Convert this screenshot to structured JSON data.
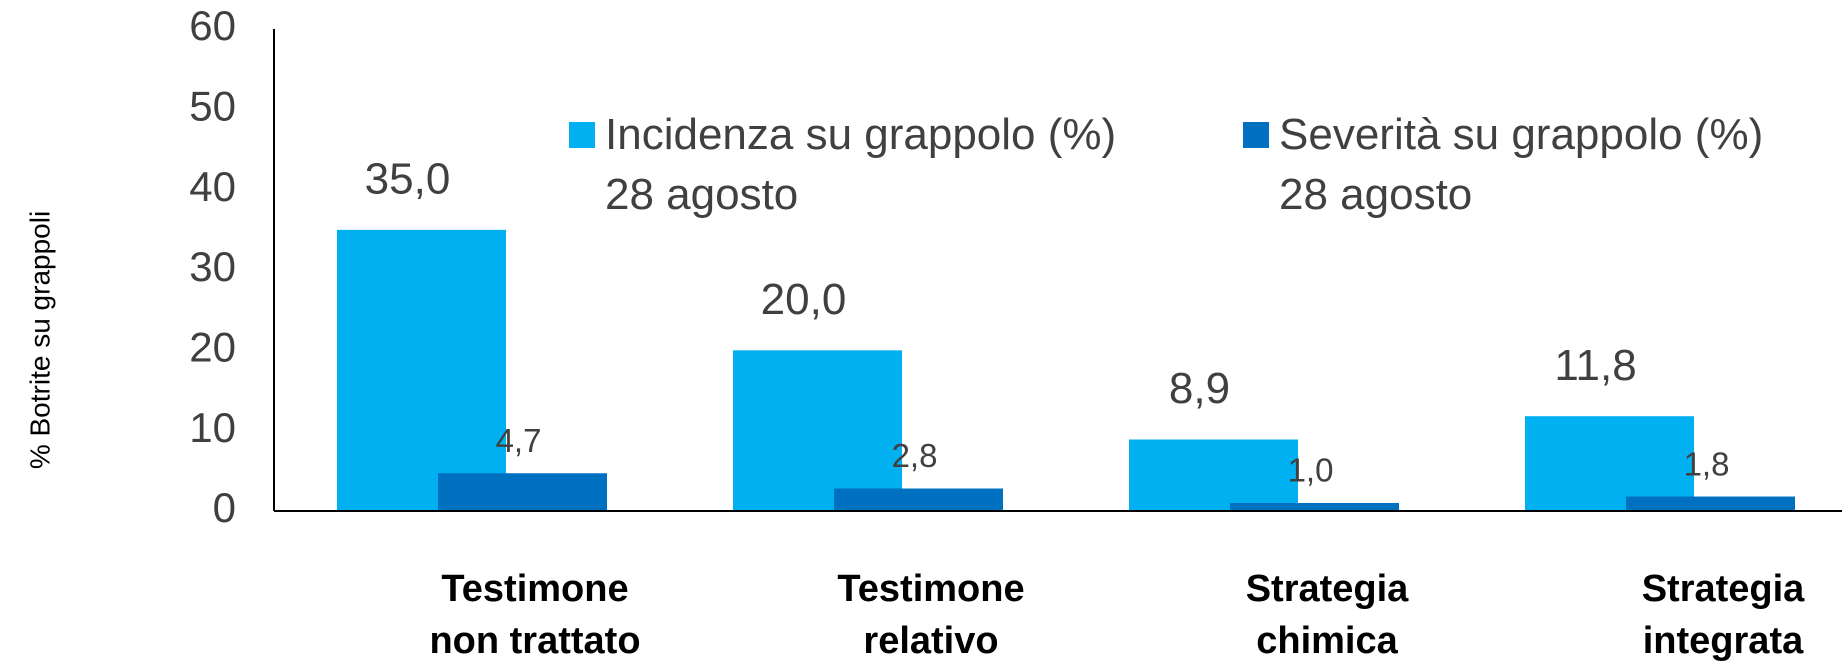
{
  "chart_data": {
    "type": "bar",
    "y_label": "% Botrite su grappoli",
    "categories": [
      "Testimone\nnon trattato",
      "Testimone\nrelativo",
      "Strategia\nchimica",
      "Strategia\nintegrata"
    ],
    "series": [
      {
        "name": "Incidenza su grappolo (%)\n28 agosto",
        "color": "#00b0f0",
        "values": [
          35.0,
          20.0,
          8.9,
          11.8
        ],
        "value_labels": [
          "35,0",
          "20,0",
          "8,9",
          "11,8"
        ]
      },
      {
        "name": "Severità su grappolo (%)\n28 agosto",
        "color": "#0070c0",
        "values": [
          4.7,
          2.8,
          1.0,
          1.8
        ],
        "value_labels": [
          "4,7",
          "2,8",
          "1,0",
          "1,8"
        ]
      }
    ],
    "ylim": [
      0,
      60
    ],
    "yticks": [
      0,
      10,
      20,
      30,
      40,
      50,
      60
    ],
    "grid": false,
    "legend": "top"
  }
}
